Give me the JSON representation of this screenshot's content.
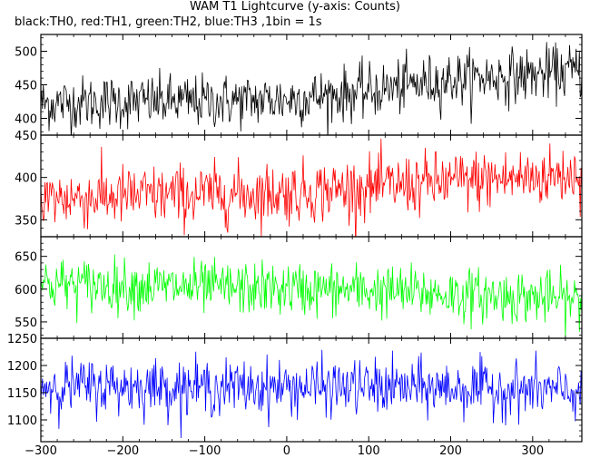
{
  "chart_data": {
    "type": "line",
    "title": "WAM T1 Lightcurve (y-axis: Counts)",
    "subtitle": "black:TH0, red:TH1, green:TH2, blue:TH3 ,1bin = 1s",
    "x_range": [
      -300,
      360
    ],
    "x_ticks": [
      -300,
      -200,
      -100,
      0,
      100,
      200,
      300
    ],
    "x_tick_labels": [
      "−300",
      "−200",
      "−100",
      "0",
      "100",
      "200",
      "300"
    ],
    "grid": false,
    "panels": [
      {
        "name": "TH0",
        "color": "#000000",
        "ylim": [
          375,
          525
        ],
        "y_ticks": [
          400,
          450,
          500
        ],
        "y_tick_labels": [
          "400",
          "450",
          "500"
        ],
        "trend": {
          "x": [
            -300,
            -200,
            -100,
            0,
            100,
            200,
            300,
            360
          ],
          "y": [
            422,
            425,
            425,
            428,
            440,
            458,
            465,
            472
          ]
        },
        "noise_sd": 20
      },
      {
        "name": "TH1",
        "color": "#ff0000",
        "ylim": [
          330,
          450
        ],
        "y_ticks": [
          350,
          400,
          450
        ],
        "y_tick_labels": [
          "350",
          "400",
          "450"
        ],
        "trend": {
          "x": [
            -300,
            -200,
            -100,
            0,
            100,
            200,
            300,
            360
          ],
          "y": [
            375,
            378,
            380,
            382,
            388,
            395,
            400,
            405
          ]
        },
        "noise_sd": 18
      },
      {
        "name": "TH2",
        "color": "#00ff00",
        "ylim": [
          525,
          680
        ],
        "y_ticks": [
          550,
          600,
          650
        ],
        "y_tick_labels": [
          "550",
          "600",
          "650"
        ],
        "trend": {
          "x": [
            -300,
            -200,
            -100,
            0,
            100,
            200,
            300,
            360
          ],
          "y": [
            608,
            605,
            602,
            600,
            598,
            592,
            588,
            582
          ]
        },
        "noise_sd": 20
      },
      {
        "name": "TH3",
        "color": "#0000ff",
        "ylim": [
          1060,
          1250
        ],
        "y_ticks": [
          1100,
          1150,
          1200,
          1250
        ],
        "y_tick_labels": [
          "1100",
          "1150",
          "1200",
          "1250"
        ],
        "trend": {
          "x": [
            -300,
            -200,
            -100,
            0,
            100,
            200,
            300,
            360
          ],
          "y": [
            1162,
            1162,
            1160,
            1160,
            1160,
            1158,
            1155,
            1150
          ]
        },
        "noise_sd": 25
      }
    ]
  }
}
